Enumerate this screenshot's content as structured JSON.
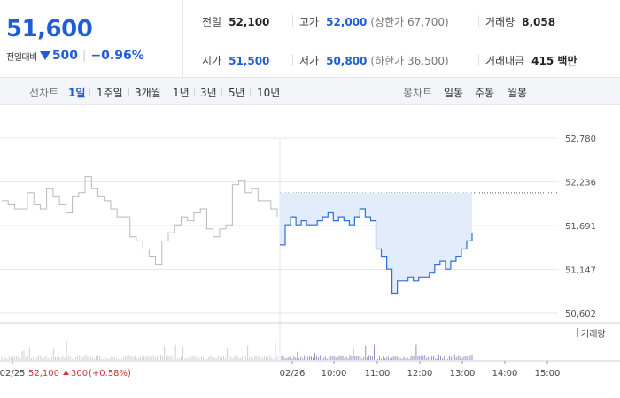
{
  "summary": {
    "price": "51,600",
    "change_label": "전일대비",
    "change_value": "500",
    "change_pct": "−0.96%",
    "stats": {
      "prev_close": {
        "label": "전일",
        "value": "52,100"
      },
      "high": {
        "label": "고가",
        "value": "52,000",
        "sub": "(상한가 67,700)"
      },
      "volume": {
        "label": "거래량",
        "value": "8,058"
      },
      "open": {
        "label": "시가",
        "value": "51,500"
      },
      "low": {
        "label": "저가",
        "value": "50,800",
        "sub": "(하한가 36,500)"
      },
      "amount": {
        "label": "거래대금",
        "value": "415 백만"
      }
    }
  },
  "toolbar": {
    "line_label": "선차트",
    "line_items": [
      "1일",
      "1주일",
      "3개월",
      "1년",
      "3년",
      "5년",
      "10년"
    ],
    "active_line": 0,
    "candle_label": "봉차트",
    "candle_items": [
      "일봉",
      "주봉",
      "월봉"
    ]
  },
  "chart": {
    "y_ticks": [
      "52,780",
      "52,236",
      "51,691",
      "51,147",
      "50,602"
    ],
    "x_labels": [
      "02/25",
      "02/26",
      "10:00",
      "11:00",
      "12:00",
      "13:00",
      "14:00",
      "15:00"
    ],
    "prev_day_info": {
      "date": "02/25",
      "close": "52,100",
      "change": "300",
      "pct": "(+0.58%)"
    },
    "volume_legend": "거래량",
    "colors": {
      "today_line": "#2d6fdc",
      "today_fill": "#e3ecfb",
      "prev_line": "#b9b9b9",
      "volume_prev": "#cfcfcf",
      "volume_today": "#9a8fc9",
      "grid": "#e8e8e8",
      "ref_line": "#555555"
    }
  },
  "chart_data": {
    "type": "line",
    "ylim": [
      50602,
      52780
    ],
    "reference_price": 52100,
    "series": [
      {
        "values": [
          52000,
          51950,
          51900,
          51900,
          52100,
          51950,
          51900,
          52150,
          52050,
          51950,
          51850,
          52050,
          52100,
          52300,
          52150,
          52050,
          52000,
          51900,
          51800,
          51800,
          51550,
          51500,
          51400,
          51300,
          51200,
          51500,
          51600,
          51700,
          51800,
          51750,
          51850,
          51900,
          51650,
          51550,
          51650,
          51700,
          52200,
          52250,
          52100,
          52150,
          52000,
          52000,
          51900,
          51800
        ]
      },
      {
        "values": [
          51450,
          51700,
          51800,
          51700,
          51750,
          51700,
          51700,
          51750,
          51800,
          51850,
          51750,
          51800,
          51750,
          51700,
          51800,
          51900,
          51800,
          51750,
          51400,
          51300,
          51150,
          50850,
          51000,
          51000,
          51050,
          51000,
          51050,
          51050,
          51100,
          51200,
          51250,
          51150,
          51250,
          51300,
          51400,
          51500,
          51600
        ]
      }
    ]
  }
}
